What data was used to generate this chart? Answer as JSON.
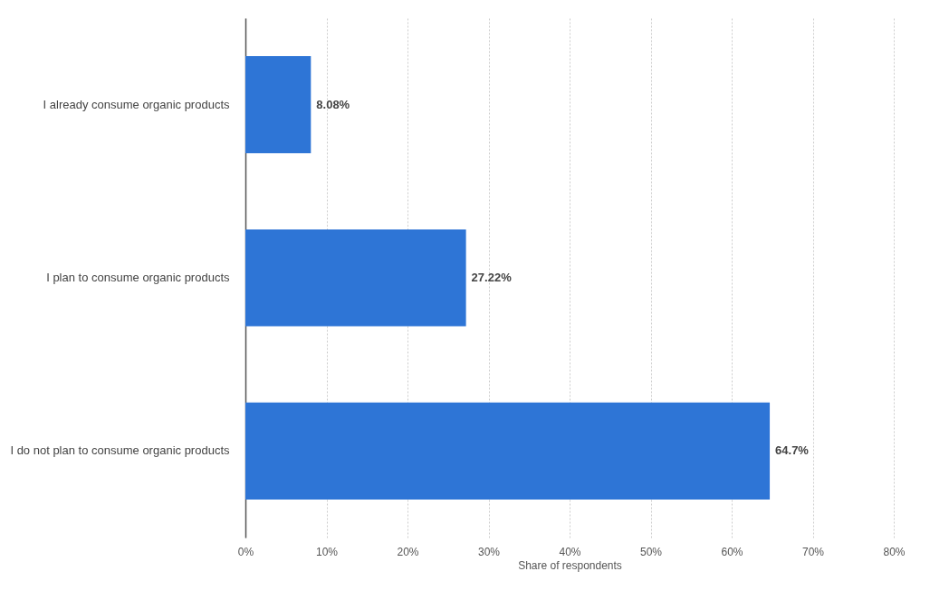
{
  "chart_data": {
    "type": "bar",
    "orientation": "horizontal",
    "xlabel": "Share of respondents",
    "categories": [
      "I already consume organic products",
      "I plan to consume organic products",
      "I do not plan to consume organic products"
    ],
    "values": [
      8.08,
      27.22,
      64.7
    ],
    "value_labels": [
      "8.08%",
      "27.22%",
      "64.7%"
    ],
    "color": "#2e75d6",
    "xlim": [
      0,
      80
    ],
    "xticks": [
      {
        "value": 0,
        "label": "0%"
      },
      {
        "value": 10,
        "label": "10%"
      },
      {
        "value": 20,
        "label": "20%"
      },
      {
        "value": 30,
        "label": "30%"
      },
      {
        "value": 40,
        "label": "40%"
      },
      {
        "value": 50,
        "label": "50%"
      },
      {
        "value": 60,
        "label": "60%"
      },
      {
        "value": 70,
        "label": "70%"
      },
      {
        "value": 80,
        "label": "80%"
      }
    ],
    "grid": "x"
  }
}
